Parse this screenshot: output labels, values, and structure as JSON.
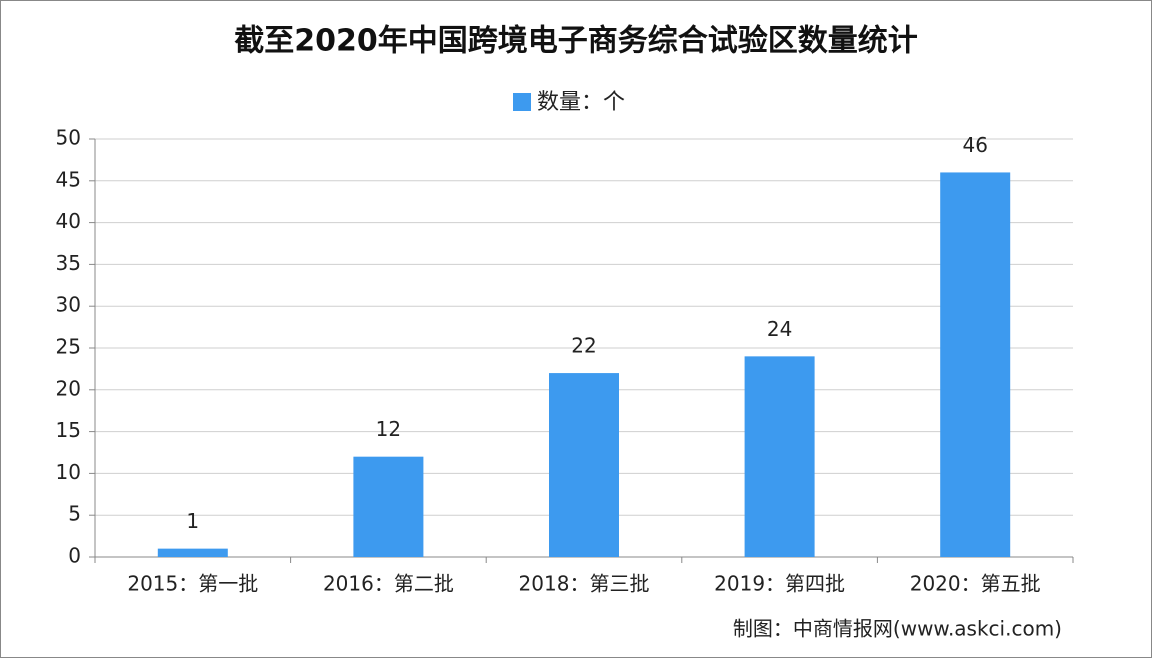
{
  "chart_data": {
    "type": "bar",
    "title": "截至2020年中国跨境电子商务综合试验区数量统计",
    "legend": "数量：个",
    "categories": [
      "2015：第一批",
      "2016：第二批",
      "2018：第三批",
      "2019：第四批",
      "2020：第五批"
    ],
    "values": [
      1,
      12,
      22,
      24,
      46
    ],
    "color": "#3d9aef",
    "ylim": [
      0,
      50
    ],
    "yticks": [
      0,
      5,
      10,
      15,
      20,
      25,
      30,
      35,
      40,
      45,
      50
    ],
    "grid": true,
    "source": "制图：中商情报网(www.askci.com)"
  }
}
